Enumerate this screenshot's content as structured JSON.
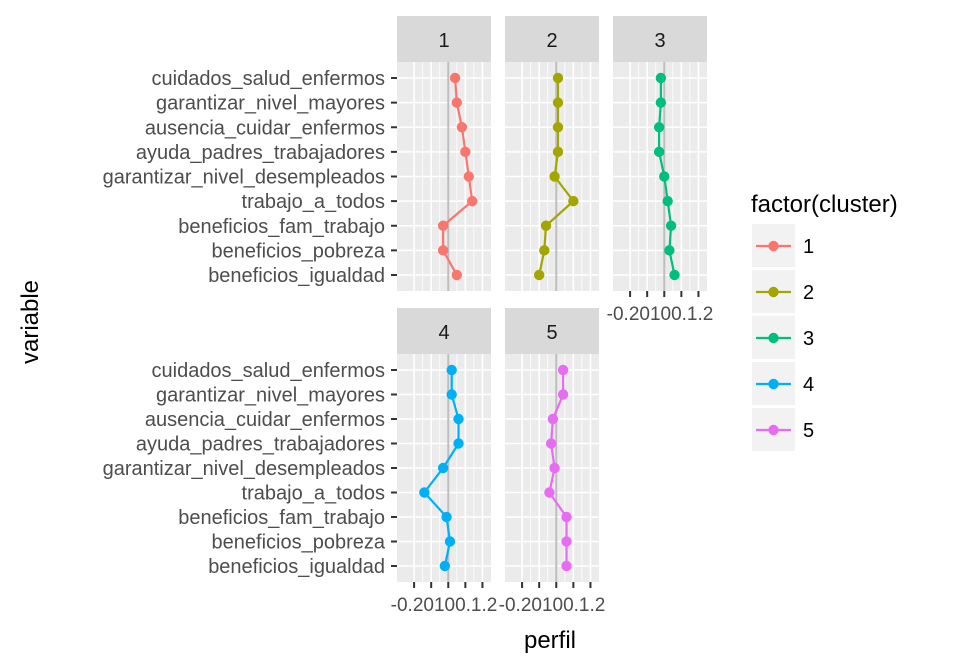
{
  "chart_data": {
    "type": "line",
    "facet_var": "cluster",
    "xlabel": "perfil",
    "ylabel": "variable",
    "x_tick_labels": [
      "-0.2",
      "0.0",
      "0.1",
      "0.2"
    ],
    "x_axis_text": "-0.20100.1.2",
    "xlim": [
      -0.3,
      0.25
    ],
    "categories": [
      "cuidados_salud_enfermos",
      "garantizar_nivel_mayores",
      "ausencia_cuidar_enfermos",
      "ayuda_padres_trabajadores",
      "garantizar_nivel_desempleados",
      "trabajo_a_todos",
      "beneficios_fam_trabajo",
      "beneficios_pobreza",
      "beneficios_igualdad"
    ],
    "legend": {
      "title": "factor(cluster)",
      "position": "right"
    },
    "colors": {
      "1": "#F8766D",
      "2": "#A3A500",
      "3": "#00BF7D",
      "4": "#00B0F6",
      "5": "#E76BF3"
    },
    "panel_background": "#EBEBEB",
    "strip_background": "#D9D9D9",
    "grid": true,
    "series": [
      {
        "name": "1",
        "values": [
          0.04,
          0.05,
          0.08,
          0.1,
          0.12,
          0.14,
          -0.03,
          -0.03,
          0.05
        ]
      },
      {
        "name": "2",
        "values": [
          0.01,
          0.01,
          0.01,
          0.01,
          -0.01,
          0.1,
          -0.06,
          -0.07,
          -0.1
        ]
      },
      {
        "name": "3",
        "values": [
          -0.02,
          -0.02,
          -0.03,
          -0.03,
          0.0,
          0.02,
          0.04,
          0.03,
          0.06
        ]
      },
      {
        "name": "4",
        "values": [
          0.02,
          0.02,
          0.06,
          0.06,
          -0.03,
          -0.14,
          -0.01,
          0.01,
          -0.02
        ]
      },
      {
        "name": "5",
        "values": [
          0.04,
          0.04,
          -0.02,
          -0.03,
          -0.01,
          -0.04,
          0.06,
          0.06,
          0.06
        ]
      }
    ]
  }
}
